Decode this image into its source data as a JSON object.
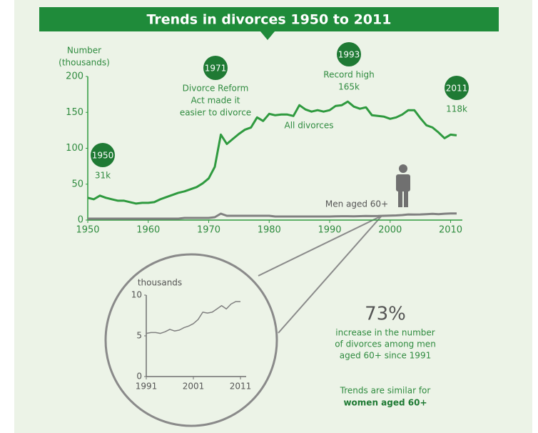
{
  "chart_data": [
    {
      "type": "line",
      "title": "Trends in divorces 1950 to 2011",
      "ylabel": [
        "Number",
        "(thousands)"
      ],
      "x": [
        1950,
        1951,
        1952,
        1953,
        1954,
        1955,
        1956,
        1957,
        1958,
        1959,
        1960,
        1961,
        1962,
        1963,
        1964,
        1965,
        1966,
        1967,
        1968,
        1969,
        1970,
        1971,
        1972,
        1973,
        1974,
        1975,
        1976,
        1977,
        1978,
        1979,
        1980,
        1981,
        1982,
        1983,
        1984,
        1985,
        1986,
        1987,
        1988,
        1989,
        1990,
        1991,
        1992,
        1993,
        1994,
        1995,
        1996,
        1997,
        1998,
        1999,
        2000,
        2001,
        2002,
        2003,
        2004,
        2005,
        2006,
        2007,
        2008,
        2009,
        2010,
        2011
      ],
      "series": [
        {
          "name": "All divorces",
          "color": "#2f9a3f",
          "values": [
            31,
            29,
            34,
            31,
            29,
            27,
            27,
            25,
            23,
            24,
            24,
            25,
            29,
            32,
            35,
            38,
            40,
            43,
            46,
            51,
            58,
            74,
            119,
            106,
            113,
            120,
            126,
            129,
            143,
            138,
            148,
            146,
            147,
            147,
            145,
            160,
            154,
            151,
            153,
            151,
            153,
            159,
            160,
            165,
            158,
            155,
            157,
            146,
            145,
            144,
            141,
            143,
            147,
            153,
            153,
            142,
            132,
            129,
            122,
            114,
            119,
            118
          ]
        },
        {
          "name": "Men aged 60+",
          "color": "#808080",
          "values": [
            2,
            2,
            2,
            2,
            2,
            2,
            2,
            2,
            2,
            2,
            2,
            2,
            2,
            2,
            2,
            2,
            3,
            3,
            3,
            3,
            3,
            4,
            9,
            6,
            6,
            6,
            6,
            6,
            6,
            6,
            6,
            5,
            5,
            5,
            5,
            5,
            5,
            5,
            5,
            5,
            5,
            5.3,
            5.4,
            5.4,
            5.3,
            5.5,
            5.8,
            5.6,
            5.7,
            6.0,
            6.2,
            6.5,
            7.0,
            7.9,
            7.8,
            7.9,
            8.3,
            8.7,
            8.3,
            8.9,
            9.2,
            9.2
          ]
        }
      ],
      "xlim": [
        1950,
        2011
      ],
      "ylim": [
        0,
        200
      ],
      "xticks": [
        1950,
        1960,
        1970,
        1980,
        1990,
        2000,
        2010
      ],
      "yticks": [
        0,
        50,
        100,
        150,
        200
      ],
      "annotations": [
        {
          "badge": "1950",
          "lines": [
            "31k"
          ]
        },
        {
          "badge": "1971",
          "lines": [
            "Divorce Reform",
            "Act made it",
            "easier to divorce"
          ]
        },
        {
          "badge": "1993",
          "lines": [
            "Record high",
            "165k"
          ]
        },
        {
          "badge": "2011",
          "lines": [
            "118k"
          ]
        }
      ]
    },
    {
      "type": "line",
      "ylabel": "thousands",
      "x": [
        1991,
        1992,
        1993,
        1994,
        1995,
        1996,
        1997,
        1998,
        1999,
        2000,
        2001,
        2002,
        2003,
        2004,
        2005,
        2006,
        2007,
        2008,
        2009,
        2010,
        2011
      ],
      "series": [
        {
          "color": "#808080",
          "values": [
            5.3,
            5.4,
            5.4,
            5.3,
            5.5,
            5.8,
            5.6,
            5.7,
            6.0,
            6.2,
            6.5,
            7.0,
            7.9,
            7.8,
            7.9,
            8.3,
            8.7,
            8.3,
            8.9,
            9.2,
            9.2
          ]
        }
      ],
      "xlim": [
        1991,
        2011
      ],
      "ylim": [
        0,
        10
      ],
      "xticks": [
        1991,
        2001,
        2011
      ],
      "yticks": [
        0,
        5,
        10
      ]
    }
  ],
  "stat": {
    "headline": "73%",
    "text": [
      "increase in the number",
      "of divorces among men",
      "aged 60+ since 1991"
    ]
  },
  "note": {
    "text": "Trends are similar for",
    "emphasis": "women aged 60+"
  }
}
